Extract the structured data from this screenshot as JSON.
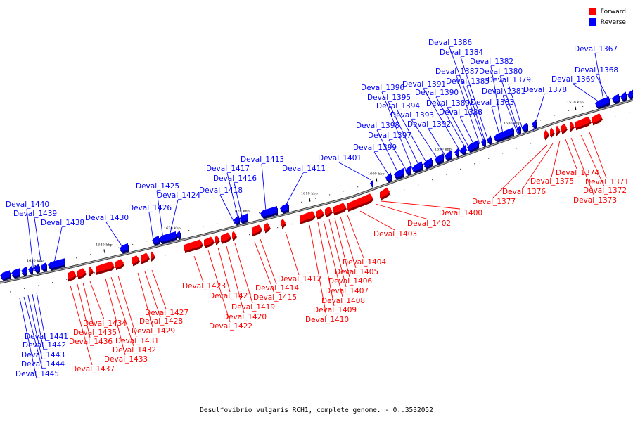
{
  "caption": "Desulfovibrio vulgaris RCH1, complete genome. - 0..3532052",
  "legend": [
    {
      "label": "Forward",
      "color": "#ff0000"
    },
    {
      "label": "Reverse",
      "color": "#0000ff"
    }
  ],
  "colors": {
    "forward": "#ff0000",
    "reverse": "#0000ff",
    "backbone": "#808080"
  },
  "ticks": [
    "1570 kbp",
    "1580 kbp",
    "1590 kbp",
    "1600 kbp",
    "1610 kbp",
    "1620 kbp",
    "1630 kbp",
    "1640 kbp",
    "1650 kbp"
  ],
  "reverse_genes": [
    "Deval_1367",
    "Deval_1368",
    "Deval_1369",
    "Deval_1378",
    "Deval_1379",
    "Deval_1380",
    "Deval_1381",
    "Deval_1382",
    "Deval_1383",
    "Deval_1384",
    "Deval_1385",
    "Deval_1386",
    "Deval_1387",
    "Deval_1388",
    "Deval_1389",
    "Deval_1390",
    "Deval_1391",
    "Deval_1392",
    "Deval_1393",
    "Deval_1394",
    "Deval_1395",
    "Deval_1396",
    "Deval_1397",
    "Deval_1398",
    "Deval_1399",
    "Deval_1401",
    "Deval_1411",
    "Deval_1413",
    "Deval_1416",
    "Deval_1417",
    "Deval_1418",
    "Deval_1424",
    "Deval_1425",
    "Deval_1426",
    "Deval_1430",
    "Deval_1438",
    "Deval_1439",
    "Deval_1440",
    "Deval_1441",
    "Deval_1442",
    "Deval_1443",
    "Deval_1444",
    "Deval_1445"
  ],
  "forward_genes": [
    "Deval_1371",
    "Deval_1372",
    "Deval_1373",
    "Deval_1374",
    "Deval_1375",
    "Deval_1376",
    "Deval_1377",
    "Deval_1400",
    "Deval_1402",
    "Deval_1403",
    "Deval_1404",
    "Deval_1405",
    "Deval_1406",
    "Deval_1407",
    "Deval_1408",
    "Deval_1409",
    "Deval_1410",
    "Deval_1412",
    "Deval_1414",
    "Deval_1415",
    "Deval_1419",
    "Deval_1420",
    "Deval_1421",
    "Deval_1422",
    "Deval_1423",
    "Deval_1427",
    "Deval_1428",
    "Deval_1429",
    "Deval_1431",
    "Deval_1432",
    "Deval_1433",
    "Deval_1434",
    "Deval_1435",
    "Deval_1436",
    "Deval_1437"
  ]
}
